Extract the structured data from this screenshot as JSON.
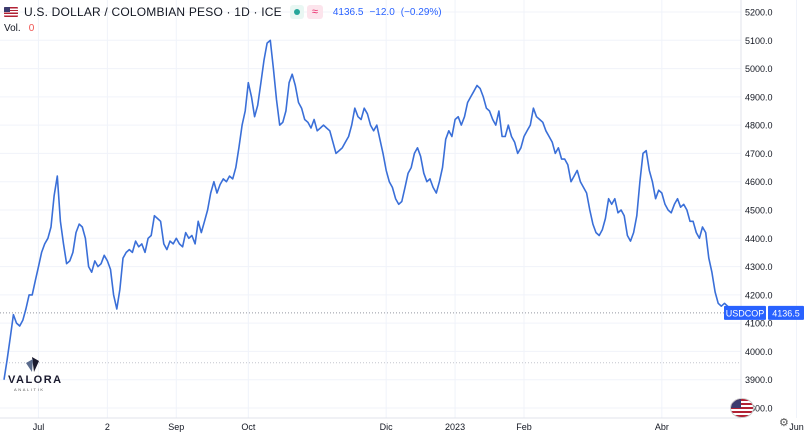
{
  "header": {
    "symbol_title": "U.S. DOLLAR / COLOMBIAN PESO · 1D · ICE",
    "equal_sign": "≈",
    "last": "4136.5",
    "change": "−12.0",
    "change_pct": "(−0.29%)"
  },
  "volume": {
    "label": "Vol.",
    "value": "0"
  },
  "logo": {
    "name": "VALORA",
    "sub": "ANALITIK"
  },
  "colors": {
    "line": "#3a6fd8",
    "price_tag": "#2962ff",
    "volume_value": "#ef5350",
    "status_dot": "#26a69a"
  },
  "icons": [
    "us-flag-icon",
    "status-dot-icon",
    "equal-icon",
    "logo-triangle-icon",
    "currency-flag-icon",
    "settings-gear-icon"
  ],
  "chart_data": {
    "type": "line",
    "ylim": [
      3800,
      5200
    ],
    "y_ticks": [
      3800,
      3900,
      4000,
      4100,
      4200,
      4300,
      4400,
      4500,
      4600,
      4700,
      4800,
      4900,
      5000,
      5100,
      5200
    ],
    "y_tick_labels": [
      "3800.0",
      "3900.0",
      "4000.0",
      "4100.0",
      "4200.0",
      "4300.0",
      "4400.0",
      "4500.0",
      "4600.0",
      "4700.0",
      "4800.0",
      "4900.0",
      "5000.0",
      "5100.0",
      "5200.0"
    ],
    "x_ticks": [
      {
        "label": "Jul",
        "idx": 11
      },
      {
        "label": "2",
        "idx": 33
      },
      {
        "label": "Sep",
        "idx": 55
      },
      {
        "label": "Oct",
        "idx": 78
      },
      {
        "label": "Dic",
        "idx": 122
      },
      {
        "label": "2023",
        "idx": 144
      },
      {
        "label": "Feb",
        "idx": 166
      },
      {
        "label": "Abr",
        "idx": 210
      },
      {
        "label": "Jun",
        "idx": 253
      }
    ],
    "last_price": 4136.5,
    "last_label": "USDCOP",
    "last_value_label": "4136.5",
    "dotted_level": 3960,
    "series": [
      {
        "values": [
          3900,
          3970,
          4050,
          4130,
          4100,
          4090,
          4110,
          4150,
          4200,
          4200,
          4250,
          4300,
          4350,
          4380,
          4400,
          4440,
          4550,
          4620,
          4460,
          4380,
          4310,
          4320,
          4350,
          4420,
          4450,
          4440,
          4400,
          4300,
          4280,
          4320,
          4300,
          4310,
          4340,
          4320,
          4290,
          4200,
          4150,
          4220,
          4330,
          4350,
          4360,
          4350,
          4390,
          4370,
          4380,
          4350,
          4400,
          4410,
          4480,
          4470,
          4460,
          4380,
          4360,
          4390,
          4380,
          4400,
          4380,
          4370,
          4420,
          4400,
          4410,
          4380,
          4460,
          4420,
          4460,
          4500,
          4560,
          4600,
          4560,
          4590,
          4610,
          4600,
          4620,
          4610,
          4650,
          4720,
          4800,
          4850,
          4950,
          4900,
          4830,
          4870,
          4950,
          5030,
          5090,
          5100,
          5000,
          4890,
          4800,
          4810,
          4850,
          4950,
          4980,
          4940,
          4880,
          4860,
          4820,
          4810,
          4790,
          4820,
          4780,
          4790,
          4800,
          4790,
          4780,
          4740,
          4700,
          4710,
          4720,
          4740,
          4760,
          4800,
          4860,
          4830,
          4820,
          4860,
          4840,
          4800,
          4780,
          4800,
          4750,
          4700,
          4640,
          4600,
          4580,
          4540,
          4520,
          4530,
          4580,
          4630,
          4650,
          4700,
          4720,
          4690,
          4630,
          4600,
          4610,
          4580,
          4560,
          4600,
          4650,
          4750,
          4780,
          4760,
          4820,
          4830,
          4800,
          4830,
          4880,
          4900,
          4920,
          4940,
          4930,
          4900,
          4860,
          4850,
          4820,
          4800,
          4850,
          4760,
          4760,
          4800,
          4760,
          4740,
          4700,
          4720,
          4760,
          4780,
          4800,
          4860,
          4830,
          4820,
          4810,
          4780,
          4760,
          4740,
          4700,
          4720,
          4680,
          4680,
          4660,
          4600,
          4620,
          4640,
          4600,
          4580,
          4560,
          4500,
          4450,
          4420,
          4410,
          4430,
          4470,
          4540,
          4520,
          4540,
          4490,
          4500,
          4480,
          4410,
          4390,
          4420,
          4480,
          4600,
          4700,
          4710,
          4640,
          4600,
          4540,
          4570,
          4560,
          4520,
          4500,
          4490,
          4520,
          4540,
          4510,
          4520,
          4500,
          4460,
          4460,
          4420,
          4400,
          4440,
          4420,
          4330,
          4280,
          4210,
          4170,
          4160,
          4170,
          4160,
          4150,
          4140,
          4136.5
        ]
      }
    ]
  }
}
